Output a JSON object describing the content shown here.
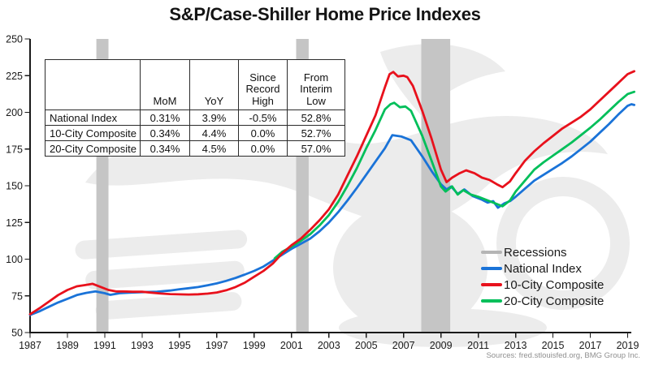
{
  "title": "S&P/Case-Shiller Home Price Indexes",
  "source_note": "Sources: fred.stlouisfed.org, BMG Group Inc.",
  "table": {
    "headers": [
      "",
      "MoM",
      "YoY",
      "Since Record High",
      "From Interim Low"
    ],
    "rows": [
      [
        "National Index",
        "0.31%",
        "3.9%",
        "-0.5%",
        "52.8%"
      ],
      [
        "10-City Composite",
        "0.34%",
        "4.4%",
        "0.0%",
        "52.7%"
      ],
      [
        "20-City Composite",
        "0.34%",
        "4.5%",
        "0.0%",
        "57.0%"
      ]
    ]
  },
  "legend": [
    {
      "label": "Recessions",
      "color": "#b5b5b5"
    },
    {
      "label": "National Index",
      "color": "#1a73d8"
    },
    {
      "label": "10-City Composite",
      "color": "#e8111c"
    },
    {
      "label": "20-City Composite",
      "color": "#00bf5a"
    }
  ],
  "chart_data": {
    "type": "line",
    "title": "S&P/Case-Shiller Home Price Indexes",
    "xlabel": "",
    "ylabel": "",
    "xlim": [
      1987,
      2019.5
    ],
    "ylim": [
      50,
      250
    ],
    "x_ticks": [
      1987,
      1989,
      1991,
      1993,
      1995,
      1997,
      1999,
      2001,
      2003,
      2005,
      2007,
      2009,
      2011,
      2013,
      2015,
      2017,
      2019
    ],
    "y_ticks": [
      50,
      75,
      100,
      125,
      150,
      175,
      200,
      225,
      250
    ],
    "grid": false,
    "legend_position": "inside lower right",
    "axis_color": "#1a1a1a",
    "recession_color": "#c5c5c5",
    "watermark_color": "#ececec",
    "recessions": [
      [
        1990.55,
        1991.2
      ],
      [
        2001.25,
        2001.92
      ],
      [
        2007.95,
        2009.5
      ]
    ],
    "series": [
      {
        "name": "National Index",
        "color": "#1a73d8",
        "points": [
          [
            1987,
            62
          ],
          [
            1987.5,
            64.5
          ],
          [
            1988,
            67.5
          ],
          [
            1988.5,
            70.5
          ],
          [
            1989,
            73
          ],
          [
            1989.5,
            75.5
          ],
          [
            1990,
            77
          ],
          [
            1990.5,
            78
          ],
          [
            1991,
            76.8
          ],
          [
            1991.3,
            75.7
          ],
          [
            1991.8,
            76.8
          ],
          [
            1992.3,
            77.2
          ],
          [
            1993,
            77.5
          ],
          [
            1993.8,
            77.8
          ],
          [
            1994.5,
            78.6
          ],
          [
            1995,
            79.5
          ],
          [
            1995.5,
            80.2
          ],
          [
            1996,
            81
          ],
          [
            1996.5,
            82.2
          ],
          [
            1997,
            83.5
          ],
          [
            1997.5,
            85.2
          ],
          [
            1998,
            87.2
          ],
          [
            1998.5,
            89.5
          ],
          [
            1999,
            92
          ],
          [
            1999.5,
            95
          ],
          [
            2000,
            99
          ],
          [
            2000.5,
            103
          ],
          [
            2001,
            107
          ],
          [
            2001.5,
            110.5
          ],
          [
            2002,
            114
          ],
          [
            2002.5,
            119
          ],
          [
            2003,
            125
          ],
          [
            2003.5,
            132
          ],
          [
            2004,
            140
          ],
          [
            2004.5,
            148.5
          ],
          [
            2005,
            157.5
          ],
          [
            2005.5,
            166.5
          ],
          [
            2006,
            175.5
          ],
          [
            2006.4,
            184.5
          ],
          [
            2006.9,
            183.5
          ],
          [
            2007.4,
            181
          ],
          [
            2008,
            170
          ],
          [
            2008.5,
            160
          ],
          [
            2009,
            151
          ],
          [
            2009.3,
            147.5
          ],
          [
            2009.55,
            149.5
          ],
          [
            2009.9,
            144.5
          ],
          [
            2010.25,
            147.5
          ],
          [
            2010.7,
            143
          ],
          [
            2011.2,
            140.5
          ],
          [
            2011.5,
            138.5
          ],
          [
            2011.8,
            139.5
          ],
          [
            2012.05,
            135
          ],
          [
            2012.4,
            138
          ],
          [
            2012.7,
            139.5
          ],
          [
            2013,
            142.5
          ],
          [
            2013.5,
            148
          ],
          [
            2014,
            153.5
          ],
          [
            2014.5,
            157.5
          ],
          [
            2015,
            161.5
          ],
          [
            2015.5,
            165.5
          ],
          [
            2016,
            170
          ],
          [
            2016.5,
            175
          ],
          [
            2017,
            180
          ],
          [
            2017.5,
            186
          ],
          [
            2018,
            192
          ],
          [
            2018.5,
            198.5
          ],
          [
            2019,
            204.5
          ],
          [
            2019.2,
            205.5
          ],
          [
            2019.35,
            205
          ]
        ]
      },
      {
        "name": "20-City Composite",
        "color": "#00bf5a",
        "points": [
          [
            2000.1,
            100.5
          ],
          [
            2000.5,
            105
          ],
          [
            2001,
            108.5
          ],
          [
            2001.5,
            112.5
          ],
          [
            2002,
            117
          ],
          [
            2002.5,
            123
          ],
          [
            2003,
            130
          ],
          [
            2003.5,
            139
          ],
          [
            2004,
            150
          ],
          [
            2004.5,
            162
          ],
          [
            2005,
            175.5
          ],
          [
            2005.5,
            188
          ],
          [
            2006,
            202
          ],
          [
            2006.3,
            205.5
          ],
          [
            2006.5,
            206.5
          ],
          [
            2006.8,
            203.5
          ],
          [
            2007.1,
            204
          ],
          [
            2007.4,
            201
          ],
          [
            2008,
            184
          ],
          [
            2008.5,
            167
          ],
          [
            2009,
            149.5
          ],
          [
            2009.25,
            146
          ],
          [
            2009.6,
            149.5
          ],
          [
            2009.9,
            144
          ],
          [
            2010.2,
            147
          ],
          [
            2010.6,
            144
          ],
          [
            2011,
            142.5
          ],
          [
            2011.5,
            140
          ],
          [
            2012,
            137.5
          ],
          [
            2012.3,
            136
          ],
          [
            2012.7,
            140
          ],
          [
            2013,
            146
          ],
          [
            2013.5,
            153.5
          ],
          [
            2014,
            161
          ],
          [
            2014.5,
            166
          ],
          [
            2015,
            170.5
          ],
          [
            2015.5,
            175
          ],
          [
            2016,
            179.5
          ],
          [
            2016.5,
            184.5
          ],
          [
            2017,
            189.5
          ],
          [
            2017.5,
            195
          ],
          [
            2018,
            201
          ],
          [
            2018.5,
            207
          ],
          [
            2019,
            212.5
          ],
          [
            2019.35,
            214
          ]
        ]
      },
      {
        "name": "10-City Composite",
        "color": "#e8111c",
        "points": [
          [
            1987,
            62.5
          ],
          [
            1987.5,
            66.5
          ],
          [
            1988,
            71
          ],
          [
            1988.5,
            75.5
          ],
          [
            1989,
            79
          ],
          [
            1989.5,
            81.5
          ],
          [
            1990,
            82.5
          ],
          [
            1990.35,
            83.2
          ],
          [
            1990.8,
            81
          ],
          [
            1991.2,
            79
          ],
          [
            1991.6,
            78
          ],
          [
            1992,
            78
          ],
          [
            1992.5,
            77.8
          ],
          [
            1993,
            77.8
          ],
          [
            1993.5,
            77.2
          ],
          [
            1994,
            76.6
          ],
          [
            1994.5,
            76.2
          ],
          [
            1995,
            76
          ],
          [
            1995.5,
            75.9
          ],
          [
            1996,
            76.1
          ],
          [
            1996.5,
            76.5
          ],
          [
            1997,
            77.3
          ],
          [
            1997.5,
            78.8
          ],
          [
            1998,
            81
          ],
          [
            1998.5,
            84
          ],
          [
            1999,
            88
          ],
          [
            1999.5,
            92
          ],
          [
            2000,
            97
          ],
          [
            2000.5,
            104
          ],
          [
            2001,
            109.5
          ],
          [
            2001.5,
            114
          ],
          [
            2002,
            120
          ],
          [
            2002.5,
            126.5
          ],
          [
            2003,
            134
          ],
          [
            2003.5,
            144
          ],
          [
            2004,
            157
          ],
          [
            2004.5,
            170
          ],
          [
            2005,
            184
          ],
          [
            2005.5,
            198
          ],
          [
            2006,
            217
          ],
          [
            2006.25,
            226
          ],
          [
            2006.45,
            227.5
          ],
          [
            2006.7,
            224.5
          ],
          [
            2007,
            225
          ],
          [
            2007.2,
            224
          ],
          [
            2007.5,
            218
          ],
          [
            2008,
            201
          ],
          [
            2008.5,
            182
          ],
          [
            2009,
            161
          ],
          [
            2009.3,
            152.5
          ],
          [
            2009.6,
            155.5
          ],
          [
            2010,
            158.5
          ],
          [
            2010.35,
            160.5
          ],
          [
            2010.8,
            158.5
          ],
          [
            2011.2,
            155.5
          ],
          [
            2011.6,
            154
          ],
          [
            2012,
            151
          ],
          [
            2012.3,
            149
          ],
          [
            2012.7,
            153
          ],
          [
            2013,
            158.5
          ],
          [
            2013.5,
            167
          ],
          [
            2014,
            173.5
          ],
          [
            2014.5,
            179
          ],
          [
            2015,
            184
          ],
          [
            2015.5,
            189
          ],
          [
            2016,
            193
          ],
          [
            2016.5,
            197
          ],
          [
            2017,
            202
          ],
          [
            2017.5,
            208
          ],
          [
            2018,
            214
          ],
          [
            2018.5,
            220
          ],
          [
            2019,
            226
          ],
          [
            2019.35,
            228
          ]
        ]
      }
    ]
  }
}
